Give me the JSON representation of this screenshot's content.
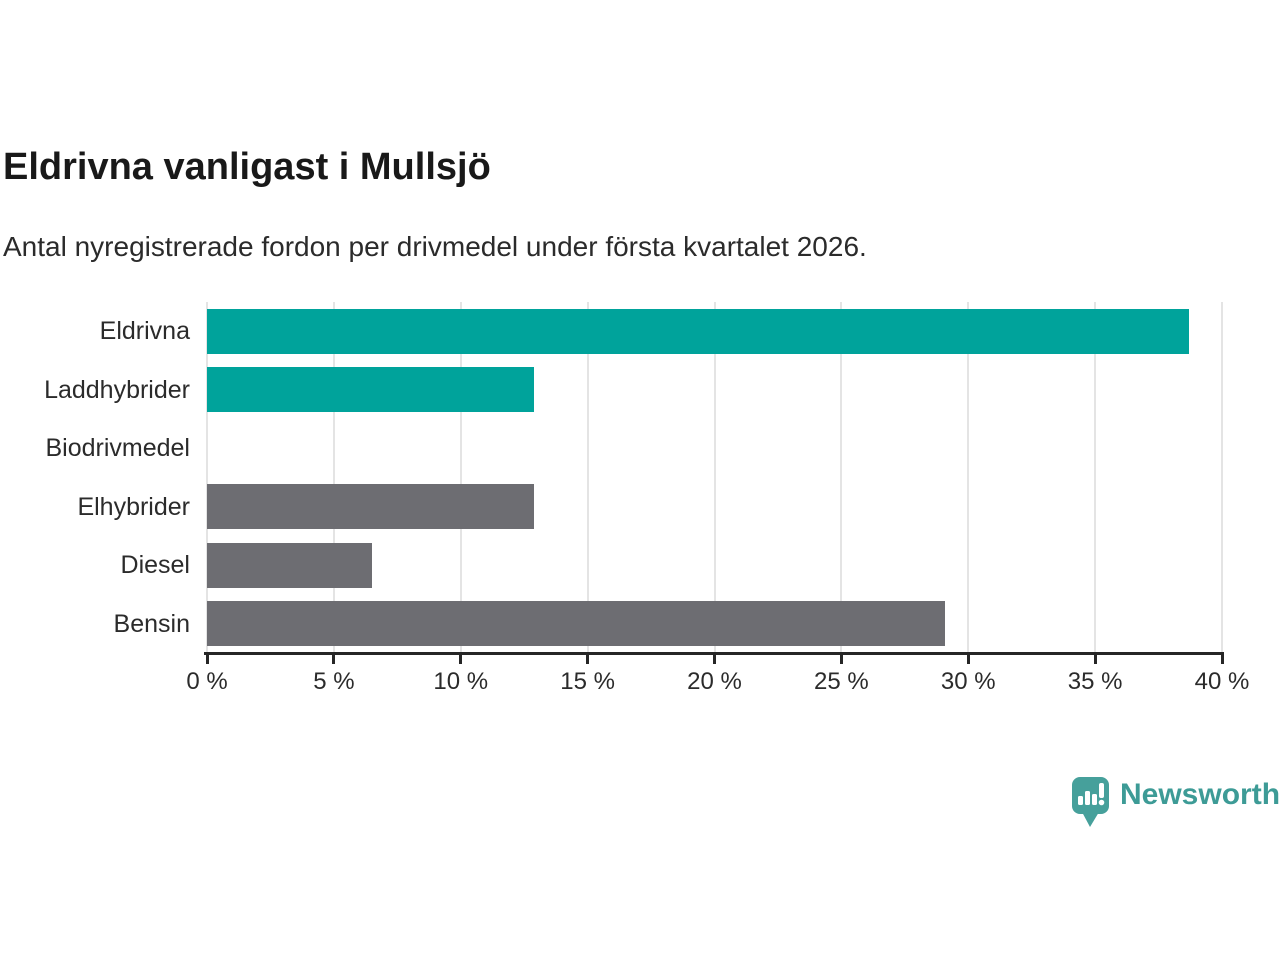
{
  "header": {
    "title": "Eldrivna vanligast i Mullsjö",
    "subtitle": "Antal nyregistrerade fordon per drivmedel under första kvartalet 2026."
  },
  "chart_data": {
    "type": "bar",
    "orientation": "horizontal",
    "title": "Eldrivna vanligast i Mullsjö",
    "subtitle": "Antal nyregistrerade fordon per drivmedel under första kvartalet 2026.",
    "categories": [
      "Eldrivna",
      "Laddhybrider",
      "Biodrivmedel",
      "Elhybrider",
      "Diesel",
      "Bensin"
    ],
    "values": [
      38.7,
      12.9,
      0,
      12.9,
      6.5,
      29.1
    ],
    "unit": "%",
    "bar_colors": [
      "#00a39b",
      "#00a39b",
      "#6d6d72",
      "#6d6d72",
      "#6d6d72",
      "#6d6d72"
    ],
    "xlim": [
      0,
      40
    ],
    "x_tick_values": [
      0,
      5,
      10,
      15,
      20,
      25,
      30,
      35,
      40
    ],
    "x_tick_labels": [
      "0 %",
      "5 %",
      "10 %",
      "15 %",
      "20 %",
      "25 %",
      "30 %",
      "35 %",
      "40 %"
    ],
    "xlabel": "",
    "ylabel": "",
    "grid": "vertical-gridlines-on",
    "legend": "none"
  },
  "branding": {
    "logo_text": "Newsworthy",
    "logo_color": "#3d9b96",
    "logo_icon": "newsworthy-speech-bubble-bar-chart-icon",
    "icon_fill": "#46a09b"
  },
  "colors": {
    "accent_teal": "#00a39b",
    "neutral_gray": "#6d6d72",
    "axis": "#262626",
    "gridline": "#e4e4e4",
    "background": "#ffffff",
    "title_text": "#191919",
    "body_text": "#2b2b2b"
  }
}
